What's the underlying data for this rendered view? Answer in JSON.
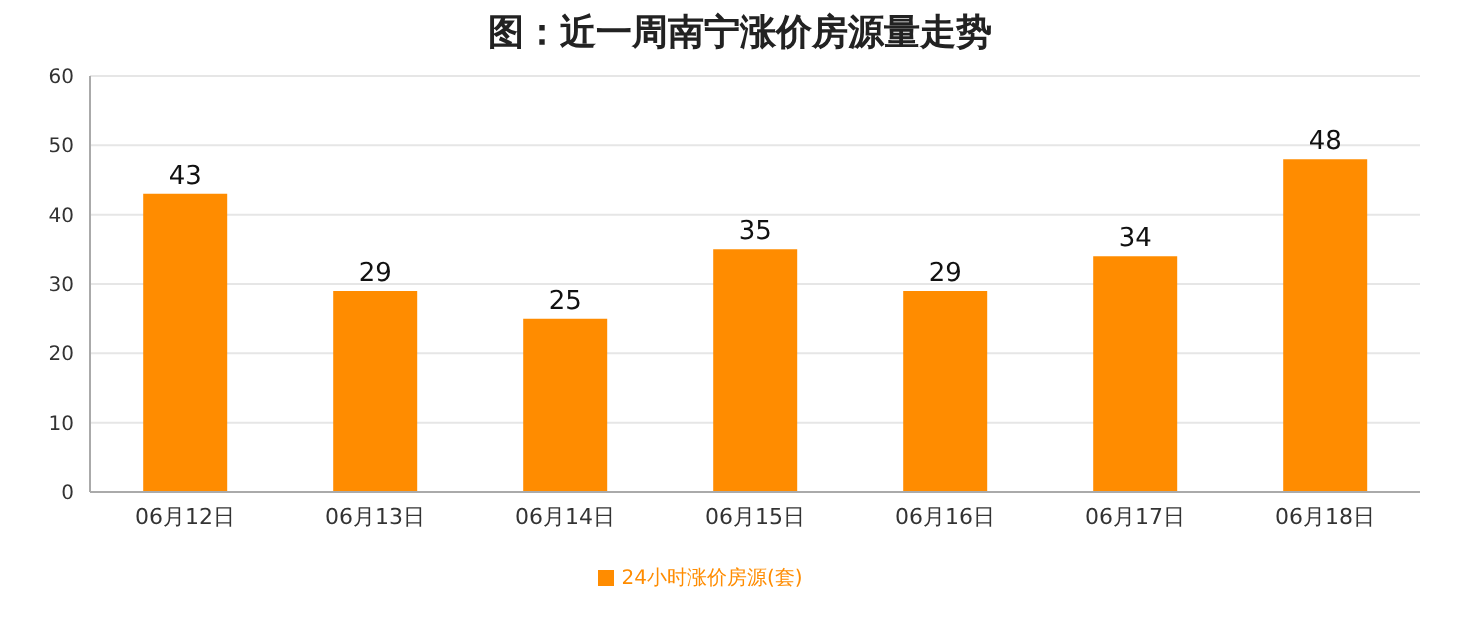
{
  "chart_data": {
    "type": "bar",
    "title": "图：近一周南宁涨价房源量走势",
    "categories": [
      "06月12日",
      "06月13日",
      "06月14日",
      "06月15日",
      "06月16日",
      "06月17日",
      "06月18日"
    ],
    "series": [
      {
        "name": "24小时涨价房源(套)",
        "color": "#ff8c00",
        "values": [
          43,
          29,
          25,
          35,
          29,
          34,
          48
        ]
      }
    ],
    "ylim": [
      0,
      60
    ],
    "yticks": [
      0,
      10,
      20,
      30,
      40,
      50,
      60
    ],
    "grid": "y",
    "legend": "bottom",
    "data_labels": true
  }
}
